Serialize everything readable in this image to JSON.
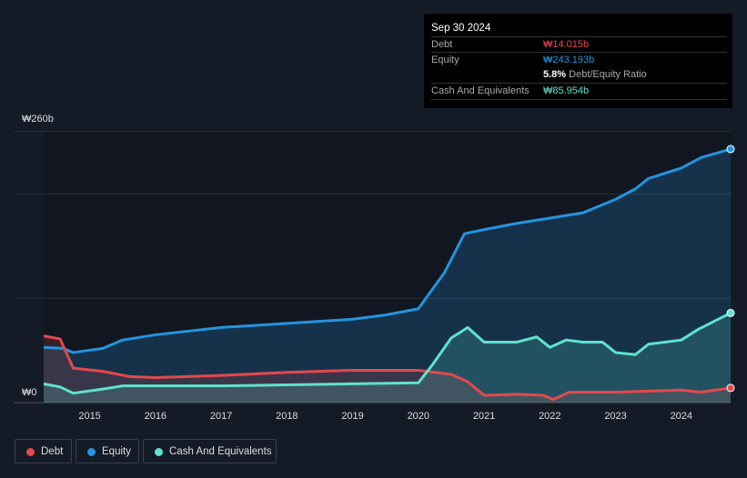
{
  "tooltip": {
    "date": "Sep 30 2024",
    "debt_label": "Debt",
    "debt_value": "₩14.015b",
    "equity_label": "Equity",
    "equity_value": "₩243.193b",
    "ratio_value": "5.8%",
    "ratio_label": "Debt/Equity Ratio",
    "cash_label": "Cash And Equivalents",
    "cash_value": "₩85.954b"
  },
  "legend": [
    {
      "label": "Debt",
      "color": "#e5484d"
    },
    {
      "label": "Equity",
      "color": "#2394df"
    },
    {
      "label": "Cash And Equivalents",
      "color": "#5fe3cc"
    }
  ],
  "chart_data": {
    "type": "area",
    "title": "",
    "xlabel": "",
    "ylabel": "",
    "unit": "₩b",
    "ylim": [
      0,
      260
    ],
    "xlim": [
      2014.3,
      2024.75
    ],
    "y_tick_labels": [
      {
        "value": 260,
        "label": "₩260b"
      },
      {
        "value": 0,
        "label": "₩0"
      }
    ],
    "gridlines": [
      100,
      200,
      260
    ],
    "x_ticks": [
      2015,
      2016,
      2017,
      2018,
      2019,
      2020,
      2021,
      2022,
      2023,
      2024
    ],
    "series": [
      {
        "name": "Equity",
        "color": "#2394df",
        "points": [
          [
            2014.3,
            53
          ],
          [
            2014.6,
            52
          ],
          [
            2014.75,
            48
          ],
          [
            2015.2,
            52
          ],
          [
            2015.5,
            60
          ],
          [
            2016,
            65
          ],
          [
            2017,
            72
          ],
          [
            2018,
            76
          ],
          [
            2019,
            80
          ],
          [
            2019.5,
            84
          ],
          [
            2020,
            90
          ],
          [
            2020.4,
            125
          ],
          [
            2020.7,
            162
          ],
          [
            2021,
            166
          ],
          [
            2021.5,
            172
          ],
          [
            2022,
            177
          ],
          [
            2022.5,
            182
          ],
          [
            2023,
            195
          ],
          [
            2023.3,
            205
          ],
          [
            2023.5,
            215
          ],
          [
            2024,
            225
          ],
          [
            2024.3,
            235
          ],
          [
            2024.75,
            243.193
          ]
        ]
      },
      {
        "name": "Debt",
        "color": "#e5484d",
        "points": [
          [
            2014.3,
            64
          ],
          [
            2014.55,
            61
          ],
          [
            2014.75,
            33
          ],
          [
            2015.2,
            30
          ],
          [
            2015.6,
            25
          ],
          [
            2016,
            24
          ],
          [
            2017,
            26
          ],
          [
            2018,
            29
          ],
          [
            2019,
            31
          ],
          [
            2020,
            31
          ],
          [
            2020.5,
            27
          ],
          [
            2020.75,
            20
          ],
          [
            2021,
            7
          ],
          [
            2021.5,
            8
          ],
          [
            2021.9,
            7
          ],
          [
            2022.05,
            3
          ],
          [
            2022.3,
            10
          ],
          [
            2023,
            10
          ],
          [
            2023.5,
            11
          ],
          [
            2024,
            12
          ],
          [
            2024.3,
            10
          ],
          [
            2024.75,
            14.015
          ]
        ]
      },
      {
        "name": "Cash And Equivalents",
        "color": "#5fe3cc",
        "points": [
          [
            2014.3,
            18
          ],
          [
            2014.55,
            15
          ],
          [
            2014.75,
            9
          ],
          [
            2015.2,
            13
          ],
          [
            2015.5,
            16
          ],
          [
            2016,
            16
          ],
          [
            2017,
            16
          ],
          [
            2018,
            17
          ],
          [
            2019,
            18
          ],
          [
            2020,
            19
          ],
          [
            2020.2,
            35
          ],
          [
            2020.5,
            62
          ],
          [
            2020.75,
            72
          ],
          [
            2021,
            58
          ],
          [
            2021.5,
            58
          ],
          [
            2021.8,
            63
          ],
          [
            2022,
            53
          ],
          [
            2022.25,
            60
          ],
          [
            2022.5,
            58
          ],
          [
            2022.8,
            58
          ],
          [
            2023,
            48
          ],
          [
            2023.3,
            46
          ],
          [
            2023.5,
            56
          ],
          [
            2024,
            60
          ],
          [
            2024.25,
            70
          ],
          [
            2024.75,
            85.954
          ]
        ]
      }
    ]
  }
}
